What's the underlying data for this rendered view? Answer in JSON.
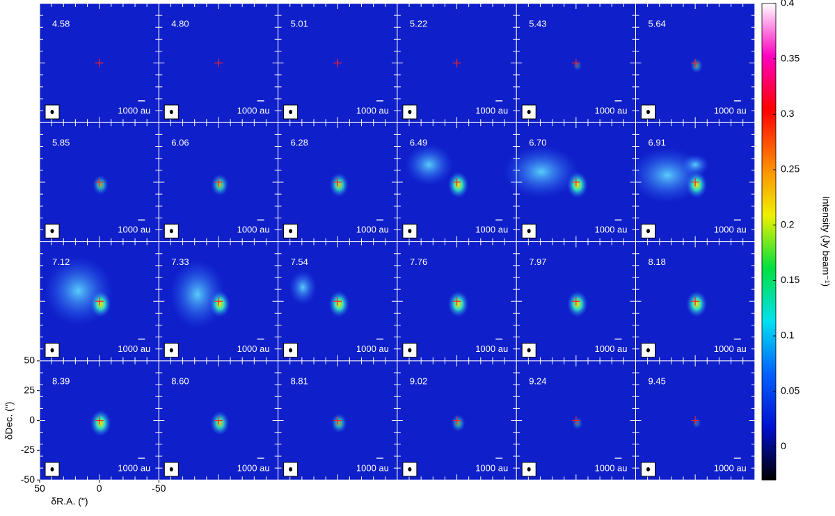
{
  "chart_data": {
    "type": "channel-map",
    "panel_labels": [
      "4.58",
      "4.80",
      "5.01",
      "5.22",
      "5.43",
      "5.64",
      "5.85",
      "6.06",
      "6.28",
      "6.49",
      "6.70",
      "6.91",
      "7.12",
      "7.33",
      "7.54",
      "7.76",
      "7.97",
      "8.18",
      "8.39",
      "8.60",
      "8.81",
      "9.02",
      "9.24",
      "9.45"
    ],
    "scale_bar_label": "1000 au",
    "x_label": "δR.A. (\")",
    "y_label": "δDec. (\")",
    "xlim": [
      50,
      -50
    ],
    "ylim": [
      -50,
      50
    ],
    "xticks": [
      50,
      0,
      -50
    ],
    "yticks": [
      50,
      25,
      0,
      -25,
      -50
    ],
    "colorbar": {
      "label": "Intensity (Jy beam⁻¹)",
      "lim": [
        -0.03,
        0.4
      ],
      "ticks": [
        0,
        0.05,
        0.1,
        0.15,
        0.2,
        0.25,
        0.3,
        0.35,
        0.4
      ],
      "colormap": [
        "#000000",
        "#0010d0",
        "#0060ff",
        "#00e0f0",
        "#00e040",
        "#f0f000",
        "#ff8000",
        "#ff0000",
        "#ff00c0",
        "#ffffff"
      ]
    }
  }
}
